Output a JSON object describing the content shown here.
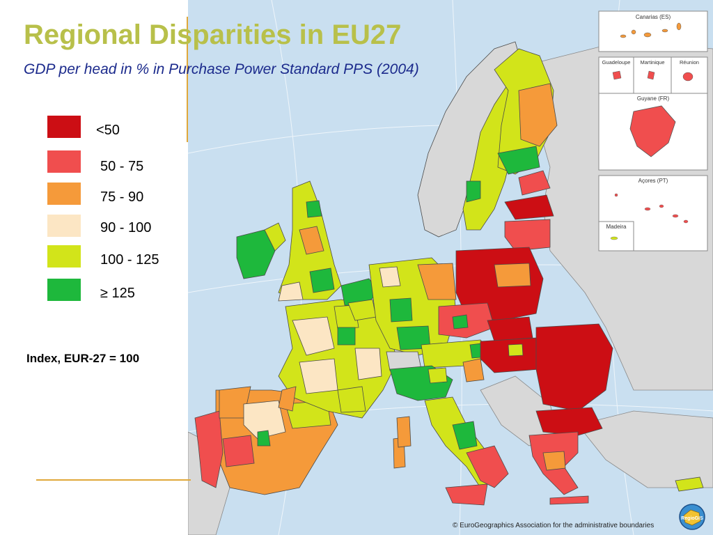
{
  "title": "Regional Disparities in EU27",
  "subtitle": "GDP per head in % in Purchase Power Standard PPS (2004)",
  "legend": [
    {
      "label": "<50",
      "color": "#cc0e14"
    },
    {
      "label": "50 - 75",
      "color": "#f04e4e"
    },
    {
      "label": "75 - 90",
      "color": "#f59a3a"
    },
    {
      "label": "90 - 100",
      "color": "#fce6c4"
    },
    {
      "label": "100 - 125",
      "color": "#d2e41a"
    },
    {
      "label": "≥ 125",
      "color": "#1eb83c"
    }
  ],
  "index_note": "Index, EUR-27 = 100",
  "insets": {
    "canarias": "Canarias (ES)",
    "guadeloupe": "Guadeloupe",
    "martinique": "Martinique",
    "reunion": "Réunion",
    "guyane": "Guyane (FR)",
    "acores": "Açores (PT)",
    "madeira": "Madeira"
  },
  "copyright": "© EuroGeographics Association for the administrative boundaries",
  "logo": {
    "text": "RegioGIS",
    "icon": "regiogis-logo-icon"
  },
  "map_colors": {
    "sea": "#c9dff0",
    "non_eu": "#d8d8d8",
    "border": "#4a4a4a"
  }
}
